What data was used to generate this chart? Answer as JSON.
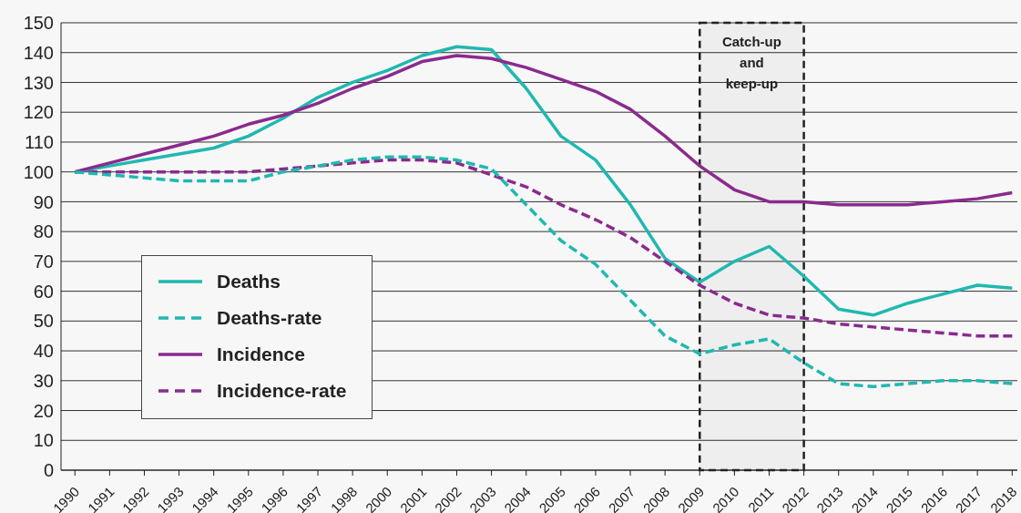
{
  "chart_data": {
    "type": "line",
    "categories": [
      "1990",
      "1991",
      "1992",
      "1993",
      "1994",
      "1995",
      "1996",
      "1997",
      "1998",
      "2000",
      "2001",
      "2002",
      "2003",
      "2004",
      "2005",
      "2006",
      "2007",
      "2008",
      "2009",
      "2010",
      "2011",
      "2012",
      "2013",
      "2014",
      "2015",
      "2016",
      "2017",
      "2018"
    ],
    "series": [
      {
        "name": "Deaths",
        "color": "#20b8b0",
        "line_style": "solid",
        "values": [
          100,
          102,
          104,
          106,
          108,
          112,
          118,
          125,
          130,
          134,
          139,
          142,
          141,
          128,
          112,
          104,
          89,
          71,
          63,
          70,
          75,
          65,
          54,
          52,
          56,
          59,
          62,
          61
        ]
      },
      {
        "name": "Deaths-rate",
        "color": "#20b8b0",
        "line_style": "dashed",
        "values": [
          100,
          99,
          98,
          97,
          97,
          97,
          100,
          102,
          104,
          105,
          105,
          104,
          101,
          89,
          77,
          69,
          57,
          45,
          39,
          42,
          44,
          36,
          29,
          28,
          29,
          30,
          30,
          29
        ]
      },
      {
        "name": "Incidence",
        "color": "#8b2a8e",
        "line_style": "solid",
        "values": [
          100,
          103,
          106,
          109,
          112,
          116,
          119,
          123,
          128,
          132,
          137,
          139,
          138,
          135,
          131,
          127,
          121,
          112,
          102,
          94,
          90,
          90,
          89,
          89,
          89,
          90,
          91,
          93
        ]
      },
      {
        "name": "Incidence-rate",
        "color": "#8b2a8e",
        "line_style": "dashed",
        "values": [
          100,
          100,
          100,
          100,
          100,
          100,
          101,
          102,
          103,
          104,
          104,
          103,
          99,
          95,
          89,
          84,
          78,
          70,
          62,
          56,
          52,
          51,
          49,
          48,
          47,
          46,
          45,
          45
        ]
      }
    ],
    "ylim": [
      0,
      150
    ],
    "yticks": [
      0,
      10,
      20,
      30,
      40,
      50,
      60,
      70,
      80,
      90,
      100,
      110,
      120,
      130,
      140,
      150
    ],
    "grid": "y",
    "legend": "bottom left",
    "marker": "none",
    "bands": [
      {
        "axis": "x",
        "from": "2009",
        "to": "2012",
        "label": "Catch-up and keep-up",
        "color": "#222222"
      }
    ]
  }
}
